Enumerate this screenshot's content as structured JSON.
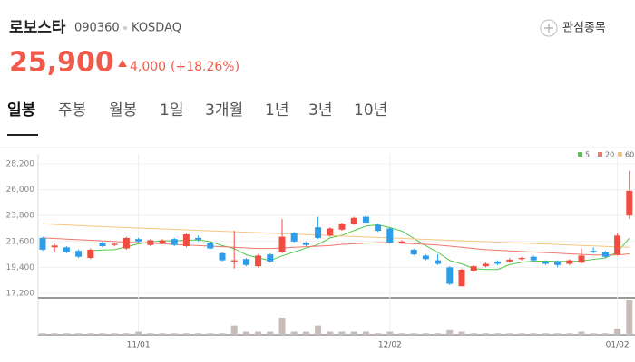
{
  "header": {
    "name": "로보스타",
    "code": "090360",
    "market": "KOSDAQ",
    "watch": "관심종목",
    "price": "25,900",
    "change": "4,000",
    "change_pct": "(+18.26%)"
  },
  "tabs": [
    "일봉",
    "주봉",
    "월봉",
    "1일",
    "3개월",
    "1년",
    "3년",
    "10년"
  ],
  "chart_data": {
    "type": "candlestick",
    "categories": [
      null,
      null,
      null,
      null,
      null,
      null,
      null,
      null,
      "11/01",
      null,
      null,
      null,
      null,
      null,
      null,
      null,
      null,
      null,
      null,
      null,
      null,
      null,
      null,
      null,
      null,
      null,
      null,
      null,
      null,
      "12/02",
      null,
      null,
      null,
      null,
      null,
      null,
      null,
      null,
      null,
      null,
      null,
      null,
      null,
      null,
      null,
      null,
      null,
      null,
      "01/02",
      null
    ],
    "open": [
      21900,
      21100,
      21100,
      20800,
      20200,
      21500,
      21300,
      21000,
      21800,
      21300,
      21500,
      21800,
      21200,
      21900,
      21500,
      20600,
      19900,
      20100,
      19500,
      20500,
      20700,
      22300,
      21500,
      22800,
      22100,
      22600,
      23100,
      23700,
      23000,
      22700,
      21500,
      20900,
      20400,
      20000,
      19400,
      17800,
      19100,
      19500,
      19900,
      19900,
      20100,
      20300,
      19900,
      19900,
      19700,
      19800,
      20800,
      20700,
      20500,
      23800
    ],
    "high": [
      22000,
      21400,
      21200,
      20900,
      21000,
      21600,
      21500,
      22000,
      21900,
      21800,
      21800,
      21900,
      22300,
      22100,
      21600,
      20700,
      22500,
      20200,
      20500,
      20600,
      23500,
      22400,
      21600,
      23700,
      22800,
      23200,
      23700,
      23800,
      23100,
      22800,
      21700,
      21000,
      20500,
      20500,
      19500,
      19300,
      19600,
      19800,
      20000,
      20200,
      20300,
      20400,
      20000,
      20000,
      20100,
      21000,
      21100,
      20800,
      22300,
      27600
    ],
    "low": [
      20800,
      20700,
      20600,
      20200,
      20100,
      21100,
      21200,
      20900,
      21500,
      21200,
      21400,
      21200,
      21100,
      21600,
      20900,
      19900,
      19300,
      19500,
      19400,
      19800,
      20600,
      21500,
      21200,
      21800,
      22000,
      22500,
      23000,
      23100,
      22400,
      21400,
      21400,
      20400,
      20000,
      19600,
      17900,
      17800,
      19000,
      19400,
      19600,
      19800,
      20000,
      19900,
      19600,
      19400,
      19600,
      19700,
      20600,
      20200,
      20400,
      23500
    ],
    "close": [
      20900,
      21250,
      20700,
      20300,
      20900,
      21200,
      21400,
      21900,
      21600,
      21700,
      21700,
      21300,
      22200,
      21750,
      21000,
      20000,
      20000,
      19600,
      20400,
      19900,
      22000,
      21600,
      21300,
      21900,
      22700,
      23100,
      23600,
      23200,
      22500,
      21500,
      21600,
      20500,
      20100,
      19700,
      18000,
      19200,
      19500,
      19700,
      19700,
      20050,
      20200,
      20000,
      19700,
      19600,
      20000,
      20400,
      20700,
      20300,
      22100,
      25900
    ],
    "up_color": "#f04c3f",
    "down_color": "#2b9de9",
    "ylim": [
      17200,
      28200
    ],
    "yticks": [
      {
        "value": 17200,
        "label": "17,200"
      },
      {
        "value": 19400,
        "label": "19,400"
      },
      {
        "value": 21600,
        "label": "21,600"
      },
      {
        "value": 23800,
        "label": "23,800"
      },
      {
        "value": 26000,
        "label": "26,000"
      },
      {
        "value": 28200,
        "label": "28,200"
      }
    ],
    "series": [
      {
        "name": "5",
        "color": "#52c94a",
        "values": [
          null,
          null,
          null,
          null,
          20810,
          20870,
          20900,
          21140,
          21400,
          21560,
          21660,
          21640,
          21700,
          21730,
          21590,
          21250,
          20990,
          20470,
          20200,
          19980,
          20380,
          20700,
          21040,
          21340,
          21900,
          22120,
          22520,
          22900,
          23020,
          22780,
          22480,
          21860,
          21240,
          20680,
          19980,
          19700,
          19300,
          19220,
          19220,
          19630,
          19830,
          19930,
          19930,
          19910,
          19900,
          19940,
          20080,
          20200,
          20700,
          21880
        ]
      },
      {
        "name": "20",
        "color": "#f0776b",
        "values": [
          21900,
          21850,
          21800,
          21750,
          21700,
          21650,
          21600,
          21550,
          21500,
          21450,
          21400,
          21350,
          21300,
          21250,
          21200,
          21150,
          21100,
          21050,
          21000,
          21000,
          21050,
          21100,
          21150,
          21200,
          21250,
          21350,
          21400,
          21450,
          21500,
          21500,
          21450,
          21400,
          21350,
          21300,
          21200,
          21100,
          21000,
          20900,
          20850,
          20800,
          20750,
          20700,
          20650,
          20600,
          20550,
          20500,
          20450,
          20450,
          20450,
          20550
        ]
      },
      {
        "name": "60",
        "color": "#f5c77e",
        "values": [
          23100,
          23050,
          23000,
          22950,
          22900,
          22860,
          22820,
          22780,
          22740,
          22700,
          22660,
          22620,
          22580,
          22540,
          22500,
          22460,
          22420,
          22380,
          22340,
          22300,
          22260,
          22220,
          22180,
          22140,
          22100,
          22060,
          22020,
          21980,
          21940,
          21900,
          21860,
          21820,
          21780,
          21740,
          21700,
          21660,
          21620,
          21580,
          21540,
          21500,
          21460,
          21420,
          21380,
          21340,
          21300,
          21260,
          21220,
          21180,
          21140,
          21100
        ]
      }
    ],
    "volume": {
      "color": "#c8bcb8",
      "values": [
        50000,
        50000,
        50000,
        50000,
        50000,
        50000,
        50000,
        50000,
        100000,
        50000,
        50000,
        50000,
        50000,
        50000,
        50000,
        50000,
        300000,
        100000,
        100000,
        100000,
        550000,
        100000,
        100000,
        300000,
        100000,
        100000,
        100000,
        100000,
        50000,
        100000,
        50000,
        50000,
        50000,
        50000,
        150000,
        100000,
        50000,
        50000,
        50000,
        50000,
        50000,
        50000,
        50000,
        50000,
        50000,
        100000,
        50000,
        50000,
        200000,
        1100000
      ]
    },
    "grid": true
  }
}
